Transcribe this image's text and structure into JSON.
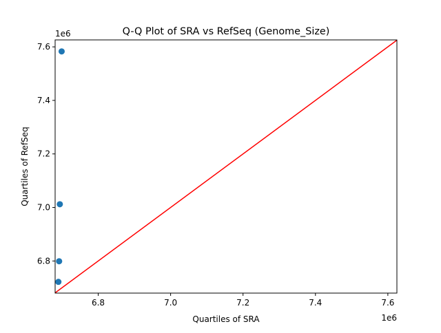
{
  "chart_data": {
    "type": "scatter",
    "title": "Q-Q Plot of SRA vs RefSeq (Genome_Size)",
    "xlabel": "Quartiles of SRA",
    "ylabel": "Quartiles of RefSeq",
    "x_offset_label": "1e6",
    "y_offset_label": "1e6",
    "xlim": [
      6.681,
      7.625
    ],
    "ylim": [
      6.68,
      7.626
    ],
    "xticks": [
      6.8,
      7.0,
      7.2,
      7.4,
      7.6
    ],
    "xtick_labels": [
      "6.8",
      "7.0",
      "7.2",
      "7.4",
      "7.6"
    ],
    "yticks": [
      6.8,
      7.0,
      7.2,
      7.4,
      7.6
    ],
    "ytick_labels": [
      "6.8",
      "7.0",
      "7.2",
      "7.4",
      "7.6"
    ],
    "grid": false,
    "points": [
      {
        "x": 6.69,
        "y": 6.722
      },
      {
        "x": 6.692,
        "y": 6.799
      },
      {
        "x": 6.694,
        "y": 7.012
      },
      {
        "x": 6.699,
        "y": 7.583
      }
    ],
    "reference_line": {
      "type": "y=x",
      "color": "#ff0000"
    },
    "point_color": "#1f77b4"
  }
}
